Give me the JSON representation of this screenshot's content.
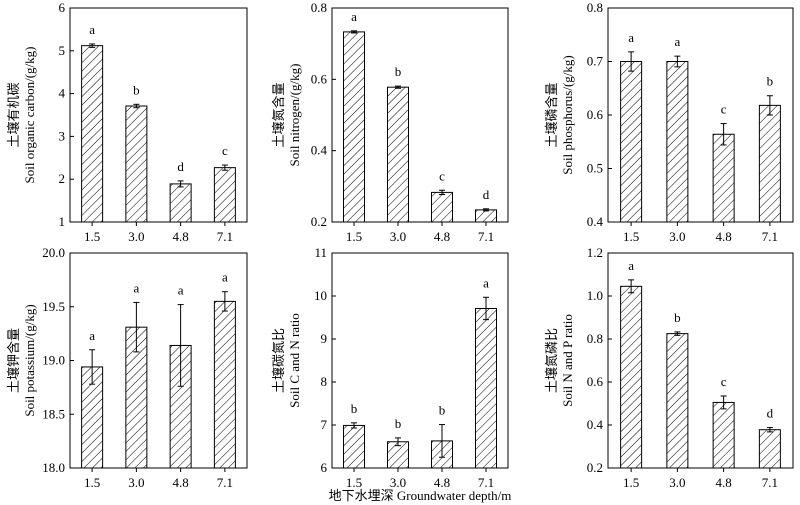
{
  "colors": {
    "axis": "#000000",
    "bar_fill": "#ffffff",
    "bar_hatch": "#000000"
  },
  "xlabel": "地下水埋深 Groundwater depth/m",
  "chart_data": [
    {
      "type": "bar",
      "categories": [
        "1.5",
        "3.0",
        "4.8",
        "7.1"
      ],
      "values": [
        5.12,
        3.71,
        1.89,
        2.27
      ],
      "errors": [
        0.04,
        0.04,
        0.07,
        0.06
      ],
      "letters": [
        "a",
        "b",
        "d",
        "c"
      ],
      "ylabel_cn": "土壤有机碳",
      "ylabel_en": "Soil organic carbon/(g/kg)",
      "ylim": [
        1,
        6
      ],
      "yticks": [
        "1",
        "2",
        "3",
        "4",
        "5",
        "6"
      ],
      "ytick_values": [
        1,
        2,
        3,
        4,
        5,
        6
      ]
    },
    {
      "type": "bar",
      "categories": [
        "1.5",
        "3.0",
        "4.8",
        "7.1"
      ],
      "values": [
        0.733,
        0.578,
        0.283,
        0.234
      ],
      "errors": [
        0.003,
        0.003,
        0.006,
        0.003
      ],
      "letters": [
        "a",
        "b",
        "c",
        "d"
      ],
      "ylabel_cn": "土壤氮含量",
      "ylabel_en": "Soil nitrogen/(g/kg)",
      "ylim": [
        0.2,
        0.8
      ],
      "yticks": [
        "0.2",
        "0.4",
        "0.6",
        "0.8"
      ],
      "ytick_values": [
        0.2,
        0.4,
        0.6,
        0.8
      ]
    },
    {
      "type": "bar",
      "categories": [
        "1.5",
        "3.0",
        "4.8",
        "7.1"
      ],
      "values": [
        0.7,
        0.7,
        0.564,
        0.618
      ],
      "errors": [
        0.018,
        0.01,
        0.02,
        0.018
      ],
      "letters": [
        "a",
        "a",
        "c",
        "b"
      ],
      "ylabel_cn": "土壤磷含量",
      "ylabel_en": "Soil phosphorus/(g/kg)",
      "ylim": [
        0.4,
        0.8
      ],
      "yticks": [
        "0.4",
        "0.5",
        "0.6",
        "0.7",
        "0.8"
      ],
      "ytick_values": [
        0.4,
        0.5,
        0.6,
        0.7,
        0.8
      ]
    },
    {
      "type": "bar",
      "categories": [
        "1.5",
        "3.0",
        "4.8",
        "7.1"
      ],
      "values": [
        18.94,
        19.31,
        19.14,
        19.55
      ],
      "errors": [
        0.16,
        0.23,
        0.38,
        0.09
      ],
      "letters": [
        "a",
        "a",
        "a",
        "a"
      ],
      "ylabel_cn": "土壤钾含量",
      "ylabel_en": "Soil potassium/(g/kg)",
      "ylim": [
        18.0,
        20.0
      ],
      "yticks": [
        "18.0",
        "18.5",
        "19.0",
        "19.5",
        "20.0"
      ],
      "ytick_values": [
        18.0,
        18.5,
        19.0,
        19.5,
        20.0
      ]
    },
    {
      "type": "bar",
      "categories": [
        "1.5",
        "3.0",
        "4.8",
        "7.1"
      ],
      "values": [
        6.99,
        6.61,
        6.63,
        9.71
      ],
      "errors": [
        0.06,
        0.09,
        0.38,
        0.26
      ],
      "letters": [
        "b",
        "b",
        "b",
        "a"
      ],
      "ylabel_cn": "土壤碳氮比",
      "ylabel_en": "Soil C and N ratio",
      "ylim": [
        6,
        11
      ],
      "yticks": [
        "6",
        "7",
        "8",
        "9",
        "10",
        "11"
      ],
      "ytick_values": [
        6,
        7,
        8,
        9,
        10,
        11
      ]
    },
    {
      "type": "bar",
      "categories": [
        "1.5",
        "3.0",
        "4.8",
        "7.1"
      ],
      "values": [
        1.045,
        0.825,
        0.505,
        0.378
      ],
      "errors": [
        0.03,
        0.008,
        0.03,
        0.01
      ],
      "letters": [
        "a",
        "b",
        "c",
        "d"
      ],
      "ylabel_cn": "土壤氮磷比",
      "ylabel_en": "Soil N and P ratio",
      "ylim": [
        0.2,
        1.2
      ],
      "yticks": [
        "0.2",
        "0.4",
        "0.6",
        "0.8",
        "1.0",
        "1.2"
      ],
      "ytick_values": [
        0.2,
        0.4,
        0.6,
        0.8,
        1.0,
        1.2
      ]
    }
  ]
}
